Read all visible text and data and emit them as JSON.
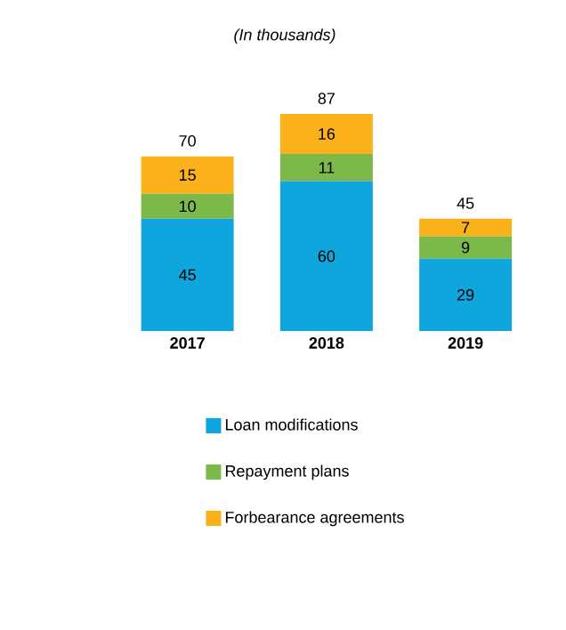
{
  "chart_data": {
    "type": "bar",
    "stacked": true,
    "subtitle": "(In thousands)",
    "categories": [
      "2017",
      "2018",
      "2019"
    ],
    "series": [
      {
        "name": "Loan modifications",
        "color": "#0fa6dd",
        "values": [
          45,
          60,
          29
        ]
      },
      {
        "name": "Repayment plans",
        "color": "#7cb84a",
        "values": [
          10,
          11,
          9
        ]
      },
      {
        "name": "Forbearance agreements",
        "color": "#fbb21a",
        "values": [
          15,
          16,
          7
        ]
      }
    ],
    "data_labels": true,
    "totals": [
      "70",
      "87",
      "45"
    ],
    "legend": "bottom"
  }
}
